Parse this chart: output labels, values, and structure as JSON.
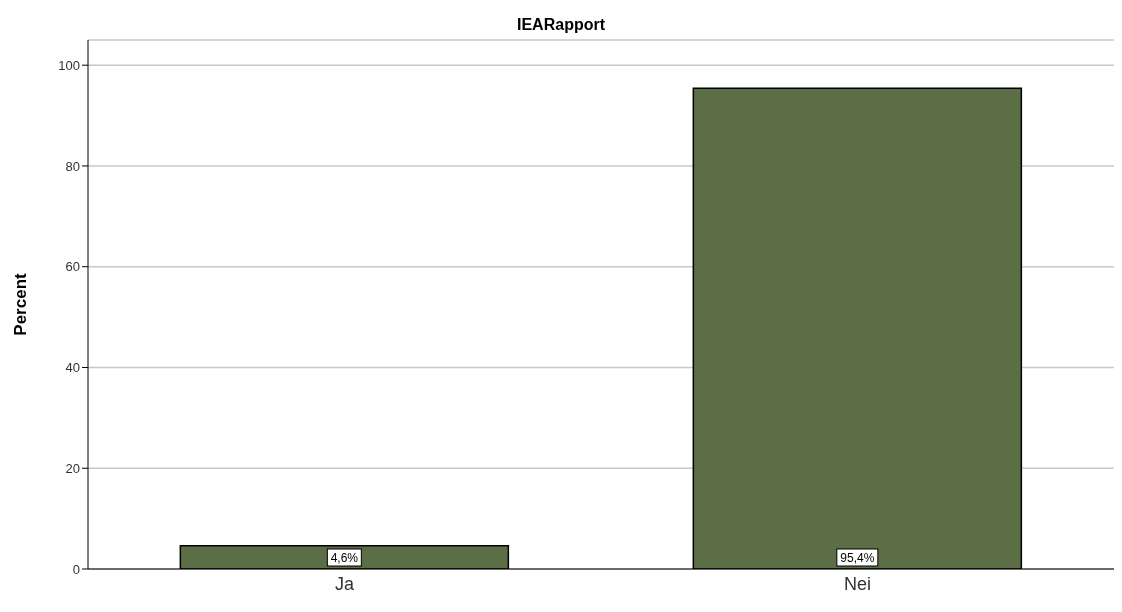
{
  "chart_data": {
    "type": "bar",
    "title": "IEARapport",
    "ylabel": "Percent",
    "categories": [
      "Ja",
      "Nei"
    ],
    "values": [
      4.6,
      95.4
    ],
    "color": "#5b6e45",
    "value_labels": [
      "4,6%",
      "95,4%"
    ],
    "ylim": [
      0,
      105
    ],
    "yticks": [
      0,
      20,
      40,
      60,
      80,
      100
    ],
    "grid": "y"
  }
}
